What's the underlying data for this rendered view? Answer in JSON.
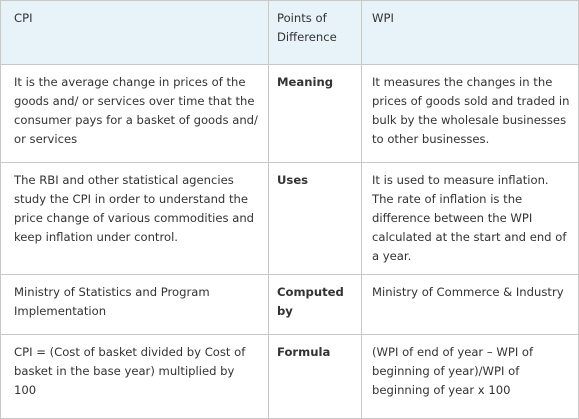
{
  "header": {
    "col1": "CPI",
    "col2": "Points of Difference",
    "col3": "WPI"
  },
  "rows": [
    {
      "cpi": "It is the average change in prices of the goods and/ or services over time that the consumer pays for a basket of goods and/ or services",
      "point": "Meaning",
      "wpi": "It measures the changes in the prices of goods sold and traded in bulk by the wholesale businesses to other businesses."
    },
    {
      "cpi": "The RBI and other statistical agencies study the CPI in order to understand the price change of various commodities and keep inflation under control.",
      "point": "Uses",
      "wpi": "It is used to measure inflation. The rate of inflation is the difference between the WPI calculated at the start and end of a year."
    },
    {
      "cpi": "Ministry of Statistics and Program Implementation",
      "point": "Computed by",
      "wpi": "Ministry of Commerce & Industry"
    },
    {
      "cpi": "CPI = (Cost of basket divided by Cost of basket in the base year) multiplied by 100",
      "point": "Formula",
      "wpi": "(WPI of end of year – WPI of beginning of year)/WPI of beginning of year x 100"
    }
  ]
}
